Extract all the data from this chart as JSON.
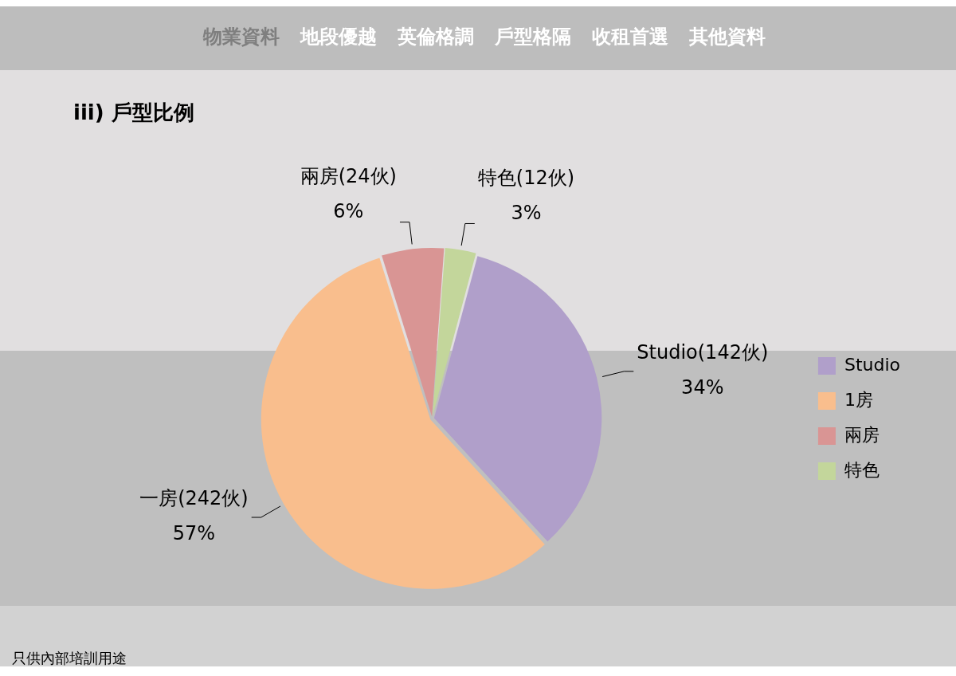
{
  "chart_data": {
    "type": "pie",
    "title": "iii) 戶型比例",
    "categories": [
      "Studio",
      "1房",
      "兩房",
      "特色"
    ],
    "values": [
      34,
      57,
      6,
      3
    ],
    "colors": [
      "#b09fca",
      "#f9be8d",
      "#d99594",
      "#c3d69b"
    ],
    "value_labels": [
      "Studio(142伙)\n34%",
      "一房(242伙)\n57%",
      "兩房(24伙)\n6%",
      "特色(12伙)\n3%"
    ],
    "legend": "right",
    "annotations": [
      "物業資料",
      "地段優越",
      "英倫格調",
      "戶型格隔",
      "收租首選",
      "其他資料",
      "只供內部培訓用途"
    ]
  }
}
